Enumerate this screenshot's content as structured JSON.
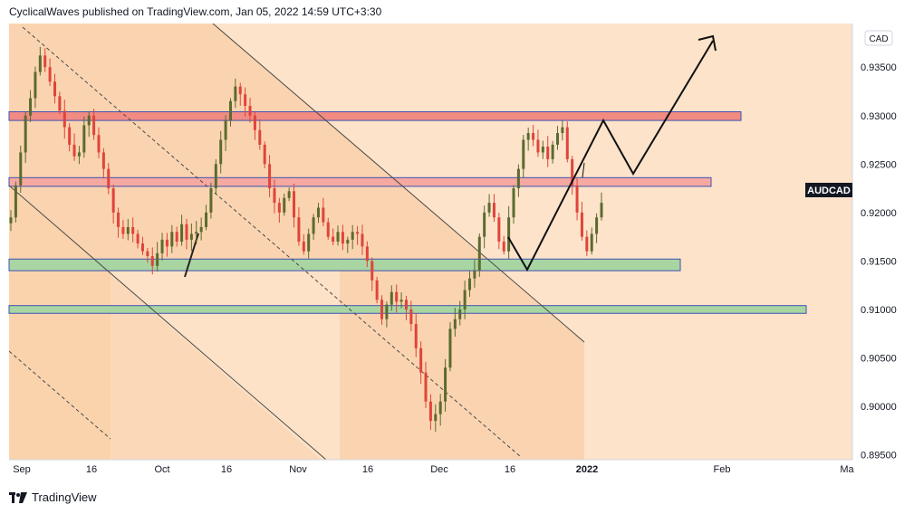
{
  "header": {
    "author": "CyclicalWaves",
    "published_on": "published on TradingView.com,",
    "date": "Jan 05, 2022 14:59 UTC+3:30"
  },
  "footer": {
    "brand": "TradingView",
    "logo_icon": "tradingview-logo-icon"
  },
  "chart_data": {
    "type": "candlestick",
    "symbol": "AUDCAD",
    "currency": "CAD",
    "price_axis_ticks": [
      "0.93500",
      "0.93000",
      "0.92500",
      "0.92000",
      "0.91500",
      "0.91000",
      "0.90500",
      "0.90000",
      "0.89500"
    ],
    "time_axis_ticks": [
      "Sep",
      "16",
      "Oct",
      "16",
      "Nov",
      "16",
      "Dec",
      "16",
      "2022",
      "Feb",
      "Ma"
    ],
    "ylim": [
      0.8945,
      0.9395
    ],
    "last_price_label": "AUDCAD",
    "resistance_zones": [
      {
        "from": 0.9295,
        "to": 0.9304,
        "color": "#f28b82"
      },
      {
        "from": 0.9227,
        "to": 0.9236,
        "color": "#f5a9a0"
      }
    ],
    "support_zones": [
      {
        "from": 0.914,
        "to": 0.9152,
        "color": "#a8d5a2"
      },
      {
        "from": 0.9096,
        "to": 0.9104,
        "color": "#a8d5a2"
      }
    ],
    "close_path": [
      0.9195,
      0.9228,
      0.9262,
      0.93,
      0.9318,
      0.9345,
      0.9362,
      0.935,
      0.9335,
      0.932,
      0.9305,
      0.9288,
      0.927,
      0.9258,
      0.9262,
      0.929,
      0.93,
      0.928,
      0.9262,
      0.9245,
      0.9225,
      0.92,
      0.9185,
      0.9178,
      0.9185,
      0.9178,
      0.9168,
      0.916,
      0.9155,
      0.9145,
      0.9158,
      0.9172,
      0.9165,
      0.918,
      0.917,
      0.9188,
      0.9172,
      0.9178,
      0.918,
      0.9185,
      0.92,
      0.9225,
      0.925,
      0.9275,
      0.9295,
      0.9315,
      0.933,
      0.9322,
      0.931,
      0.93,
      0.9285,
      0.927,
      0.925,
      0.9225,
      0.921,
      0.92,
      0.9215,
      0.9222,
      0.9195,
      0.917,
      0.916,
      0.9178,
      0.9195,
      0.9205,
      0.919,
      0.9175,
      0.917,
      0.918,
      0.9168,
      0.9172,
      0.918,
      0.9178,
      0.9165,
      0.915,
      0.913,
      0.911,
      0.909,
      0.9105,
      0.9118,
      0.9108,
      0.911,
      0.91,
      0.9085,
      0.906,
      0.9035,
      0.9005,
      0.8985,
      0.8992,
      0.9005,
      0.904,
      0.908,
      0.909,
      0.91,
      0.912,
      0.9132,
      0.914,
      0.9175,
      0.92,
      0.921,
      0.9195,
      0.917,
      0.916,
      0.9195,
      0.9225,
      0.9245,
      0.9275,
      0.9282,
      0.9275,
      0.9262,
      0.9268,
      0.9255,
      0.927,
      0.9282,
      0.9288,
      0.9255,
      0.9228,
      0.92,
      0.9175,
      0.916,
      0.9178,
      0.9195,
      0.921
    ]
  }
}
